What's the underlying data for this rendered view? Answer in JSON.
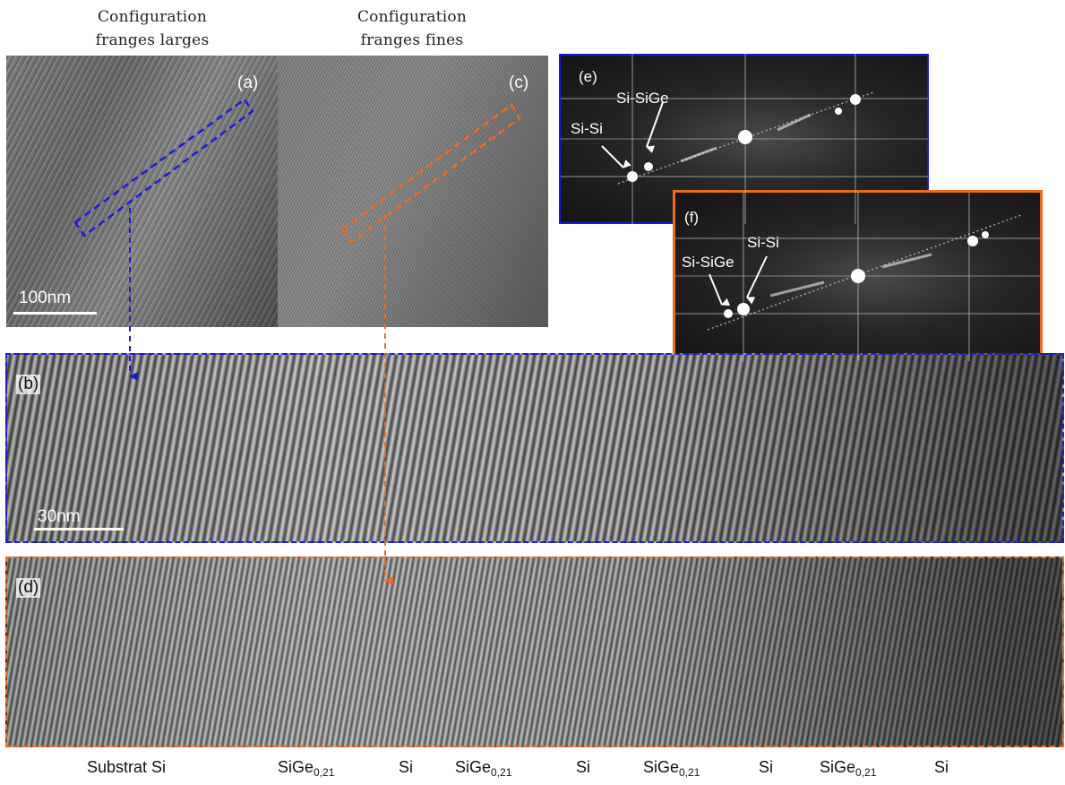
{
  "titles": {
    "left": {
      "line1": "Configuration",
      "line2": "franges larges"
    },
    "right": {
      "line1": "Configuration",
      "line2": "franges fines"
    }
  },
  "panels": {
    "a": "(a)",
    "b": "(b)",
    "c": "(c)",
    "d": "(d)",
    "e": "(e)",
    "f": "(f)"
  },
  "scale_bars": {
    "top": "100nm",
    "bottom": "30nm"
  },
  "fft_labels": {
    "e": {
      "si_sige": "Si-SiGe",
      "si_si": "Si-Si"
    },
    "f": {
      "si_si": "Si-Si",
      "si_sige": "Si-SiGe"
    }
  },
  "layers": [
    {
      "base": "Substrat Si",
      "sub": ""
    },
    {
      "base": "SiGe",
      "sub": "0,21"
    },
    {
      "base": "Si",
      "sub": ""
    },
    {
      "base": "SiGe",
      "sub": "0,21"
    },
    {
      "base": "Si",
      "sub": ""
    },
    {
      "base": "SiGe",
      "sub": "0,21"
    },
    {
      "base": "Si",
      "sub": ""
    },
    {
      "base": "SiGe",
      "sub": "0,21"
    },
    {
      "base": "Si",
      "sub": ""
    }
  ],
  "colors": {
    "blue": "#1a1adf",
    "orange": "#ee6a1d",
    "background": "#ffffff"
  },
  "icons": [
    "arrow-icon"
  ]
}
